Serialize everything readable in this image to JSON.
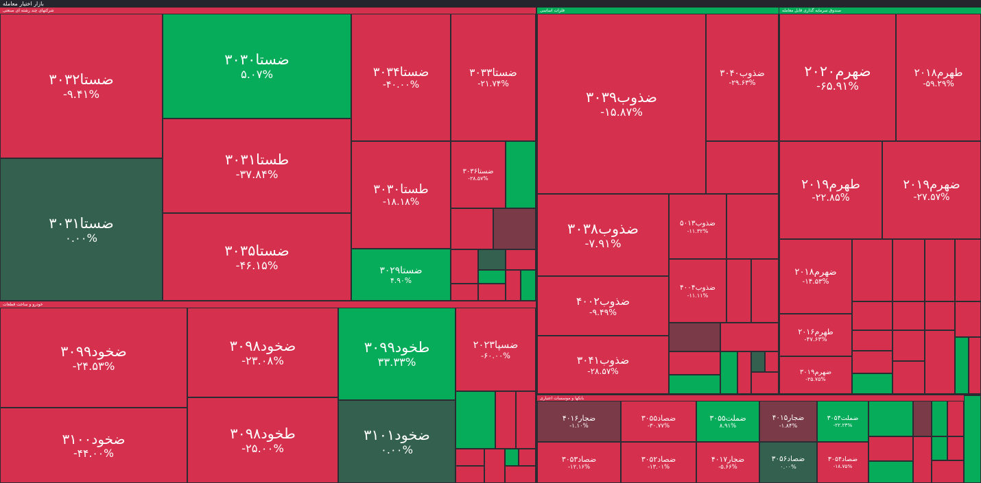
{
  "header": {
    "title": "بازار اختیار معامله"
  },
  "sectors": [
    {
      "label": "شرکتهای چند رشته ای صنعتی",
      "color": "#d5304d",
      "tiles": [
        {
          "name": "ضستا۳۰۳۲",
          "change": "-۹.۴۱%",
          "color": "#d5304d"
        },
        {
          "name": "ضستا۳۰۳۱",
          "change": "۰.۰۰%",
          "color": "#33604f"
        },
        {
          "name": "ضستا۳۰۳۰",
          "change": "۵.۰۷%",
          "color": "#07ac5b"
        },
        {
          "name": "طستا۳۰۳۱",
          "change": "-۳۷.۸۴%",
          "color": "#d5304d"
        },
        {
          "name": "ضستا۳۰۳۵",
          "change": "-۴۶.۱۵%",
          "color": "#d5304d"
        },
        {
          "name": "ضستا۳۰۳۴",
          "change": "-۴۰.۰۰%",
          "color": "#d5304d"
        },
        {
          "name": "ضستا۳۰۳۳",
          "change": "-۲۱.۷۴%",
          "color": "#d5304d"
        },
        {
          "name": "طستا۳۰۳۰",
          "change": "-۱۸.۱۸%",
          "color": "#d5304d"
        },
        {
          "name": "ضستا۳۰۲۹",
          "change": "۴.۹۰%",
          "color": "#07ac5b"
        },
        {
          "name": "ضستا۳۰۳۶",
          "change": "-۲۸.۵۷%",
          "color": "#d5304d"
        }
      ]
    },
    {
      "label": "خودرو و ساخت قطعات",
      "color": "#d5304d",
      "tiles": [
        {
          "name": "ضخود۳۰۹۹",
          "change": "-۲۴.۵۳%",
          "color": "#d5304d"
        },
        {
          "name": "ضخود۳۱۰۰",
          "change": "-۴۴.۰۰%",
          "color": "#d5304d"
        },
        {
          "name": "ضخود۳۰۹۸",
          "change": "-۲۳.۰۸%",
          "color": "#d5304d"
        },
        {
          "name": "طخود۳۰۹۸",
          "change": "-۲۵.۰۰%",
          "color": "#d5304d"
        },
        {
          "name": "طخود۳۰۹۹",
          "change": "۳۳.۳۳%",
          "color": "#07ac5b"
        },
        {
          "name": "ضخود۳۱۰۱",
          "change": "۰.۰۰%",
          "color": "#33604f"
        },
        {
          "name": "ضسپا۲۰۲۳",
          "change": "-۶۰.۰۰%",
          "color": "#d5304d"
        }
      ]
    },
    {
      "label": "فلزات اساسی",
      "color": "#07ac5b",
      "tiles": [
        {
          "name": "ضذوب۳۰۳۹",
          "change": "-۱۵.۸۷%",
          "color": "#d5304d"
        },
        {
          "name": "ضذوب۳۰۴۰",
          "change": "-۲۹.۶۳%",
          "color": "#d5304d"
        },
        {
          "name": "ضذوب۳۰۳۸",
          "change": "-۷.۹۱%",
          "color": "#d5304d"
        },
        {
          "name": "ضذوب۴۰۰۲",
          "change": "-۹.۴۹%",
          "color": "#d5304d"
        },
        {
          "name": "ضذوب۳۰۴۱",
          "change": "-۲۸.۵۷%",
          "color": "#d5304d"
        },
        {
          "name": "ضذوب۵۰۱۳",
          "change": "-۱۱.۳۲%",
          "color": "#d5304d"
        },
        {
          "name": "ضذوب۴۰۰۴",
          "change": "-۱۱.۱۱%",
          "color": "#d5304d"
        }
      ]
    },
    {
      "label": "صندوق سرمایه گذاری قابل معامله",
      "color": "#07ac5b",
      "tiles": [
        {
          "name": "ضهرم۲۰۲۰",
          "change": "-۶۵.۹۱%",
          "color": "#d5304d"
        },
        {
          "name": "طهرم۲۰۱۸",
          "change": "-۵۹.۲۹%",
          "color": "#d5304d"
        },
        {
          "name": "طهرم۲۰۱۹",
          "change": "-۲۲.۸۵%",
          "color": "#d5304d"
        },
        {
          "name": "ضهرم۲۰۱۹",
          "change": "-۲۷.۵۷%",
          "color": "#d5304d"
        },
        {
          "name": "ضهرم۲۰۱۸",
          "change": "-۱۴.۵۳%",
          "color": "#d5304d"
        },
        {
          "name": "طهرم۲۰۱۶",
          "change": "-۴۷.۶۳%",
          "color": "#d5304d"
        },
        {
          "name": "ضهرم۳۰۱۹",
          "change": "-۲۵.۷۵%",
          "color": "#d5304d"
        }
      ]
    },
    {
      "label": "بانکها و موسسات اعتباری",
      "color": "#d5304d",
      "tiles": [
        {
          "name": "ضجار۴۰۱۶",
          "change": "-۱.۱۰%",
          "color": "#7b3a48"
        },
        {
          "name": "ضصاد۳۰۵۳",
          "change": "-۱۲.۱۶%",
          "color": "#d5304d"
        },
        {
          "name": "ضصاد۳۰۵۵",
          "change": "-۳۰.۷۷%",
          "color": "#d5304d"
        },
        {
          "name": "ضصاد۳۰۵۲",
          "change": "-۱۳.۰۱%",
          "color": "#d5304d"
        },
        {
          "name": "ضملت۳۰۵۵",
          "change": "۸.۹۱%",
          "color": "#07ac5b"
        },
        {
          "name": "ضجار۴۰۱۷",
          "change": "-۵.۶۶%",
          "color": "#d5304d"
        },
        {
          "name": "ضجار۴۰۱۵",
          "change": "-۱.۸۴%",
          "color": "#7b3a48"
        },
        {
          "name": "ضصاد۳۰۵۶",
          "change": "۰.۰۰%",
          "color": "#33604f"
        },
        {
          "name": "ضملت۳۰۵۴",
          "change": "-۲۲.۲۳%",
          "color": "#07ac5b"
        },
        {
          "name": "ضصاد۳۰۵۴",
          "change": "-۱۸.۷۵%",
          "color": "#d5304d"
        }
      ]
    }
  ]
}
